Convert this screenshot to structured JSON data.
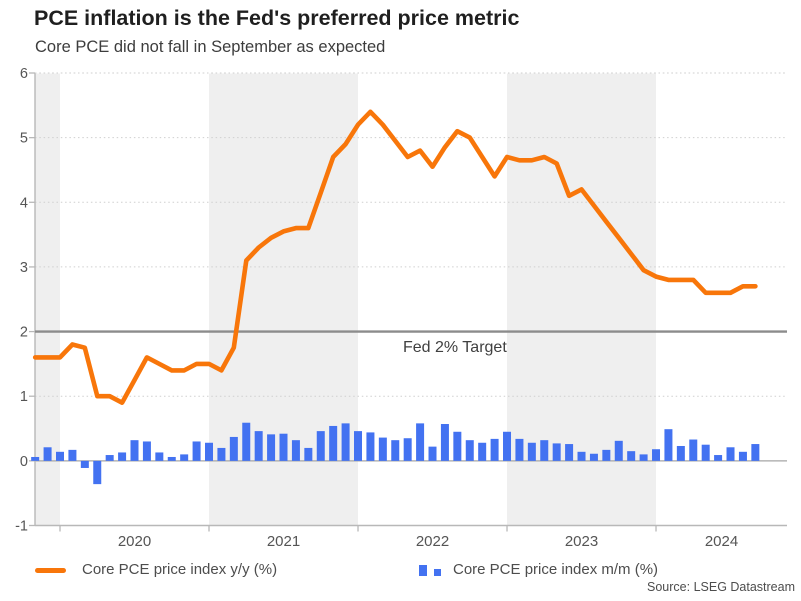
{
  "header": {
    "title": "PCE inflation is the Fed's preferred price metric",
    "subtitle": "Core PCE did not fall in September as expected"
  },
  "source": "Source: LSEG Datastream",
  "annotations": {
    "fed_target_label": "Fed 2% Target"
  },
  "legend": {
    "yy": {
      "label": "Core PCE price index y/y (%)",
      "swatch": "orange-line"
    },
    "mm": {
      "label": "Core PCE price index m/m (%)",
      "swatch": "blue-bars"
    }
  },
  "colors": {
    "line_orange": "#f8760a",
    "bar_blue": "#4372f1",
    "band_gray": "#efefef",
    "fed_line": "#8c8c8c",
    "zero_line": "#a6a6a6",
    "axis_gray": "#b8b8b8",
    "grid_dotted": "#cfcfcf",
    "tick_text": "#555555"
  },
  "chart_data": {
    "type": "line+bar",
    "title": "PCE inflation is the Fed's preferred price metric",
    "subtitle": "Core PCE did not fall in September as expected",
    "ylim": [
      -1,
      6
    ],
    "y_ticks": [
      6,
      5,
      4,
      3,
      2,
      1,
      0,
      -1
    ],
    "x_year_labels": [
      "2020",
      "2021",
      "2022",
      "2023",
      "2024"
    ],
    "shaded_periods": [
      "2019-Nov-Dec",
      "2021",
      "2023"
    ],
    "grid": "dotted-horizontal",
    "legend_position": "bottom",
    "reference_line": {
      "value": 2,
      "label": "Fed 2% Target"
    },
    "months": [
      "2019-11",
      "2019-12",
      "2020-01",
      "2020-02",
      "2020-03",
      "2020-04",
      "2020-05",
      "2020-06",
      "2020-07",
      "2020-08",
      "2020-09",
      "2020-10",
      "2020-11",
      "2020-12",
      "2021-01",
      "2021-02",
      "2021-03",
      "2021-04",
      "2021-05",
      "2021-06",
      "2021-07",
      "2021-08",
      "2021-09",
      "2021-10",
      "2021-11",
      "2021-12",
      "2022-01",
      "2022-02",
      "2022-03",
      "2022-04",
      "2022-05",
      "2022-06",
      "2022-07",
      "2022-08",
      "2022-09",
      "2022-10",
      "2022-11",
      "2022-12",
      "2023-01",
      "2023-02",
      "2023-03",
      "2023-04",
      "2023-05",
      "2023-06",
      "2023-07",
      "2023-08",
      "2023-09",
      "2023-10",
      "2023-11",
      "2023-12",
      "2024-01",
      "2024-02",
      "2024-03",
      "2024-04",
      "2024-05",
      "2024-06",
      "2024-07",
      "2024-08",
      "2024-09"
    ],
    "series": [
      {
        "name": "Core PCE price index y/y (%)",
        "type": "line",
        "color": "#f8760a",
        "values": [
          1.6,
          1.6,
          1.6,
          1.8,
          1.75,
          1.0,
          1.0,
          0.9,
          1.25,
          1.6,
          1.5,
          1.4,
          1.4,
          1.5,
          1.5,
          1.4,
          1.75,
          3.1,
          3.3,
          3.45,
          3.55,
          3.6,
          3.6,
          4.15,
          4.7,
          4.9,
          5.2,
          5.4,
          5.2,
          4.95,
          4.7,
          4.8,
          4.55,
          4.85,
          5.1,
          5.0,
          4.7,
          4.4,
          4.7,
          4.65,
          4.65,
          4.7,
          4.6,
          4.1,
          4.2,
          3.95,
          3.7,
          3.45,
          3.2,
          2.95,
          2.85,
          2.8,
          2.8,
          2.8,
          2.6,
          2.6,
          2.6,
          2.7,
          2.7
        ]
      },
      {
        "name": "Core PCE price index m/m (%)",
        "type": "bar",
        "color": "#4372f1",
        "values": [
          0.06,
          0.21,
          0.14,
          0.17,
          -0.11,
          -0.36,
          0.09,
          0.13,
          0.32,
          0.3,
          0.13,
          0.06,
          0.1,
          0.3,
          0.28,
          0.2,
          0.37,
          0.59,
          0.46,
          0.41,
          0.42,
          0.32,
          0.2,
          0.46,
          0.54,
          0.58,
          0.46,
          0.44,
          0.36,
          0.32,
          0.35,
          0.58,
          0.22,
          0.57,
          0.45,
          0.32,
          0.28,
          0.34,
          0.45,
          0.34,
          0.28,
          0.32,
          0.27,
          0.26,
          0.14,
          0.11,
          0.17,
          0.31,
          0.15,
          0.1,
          0.18,
          0.49,
          0.23,
          0.33,
          0.25,
          0.09,
          0.21,
          0.14,
          0.26
        ]
      }
    ]
  }
}
